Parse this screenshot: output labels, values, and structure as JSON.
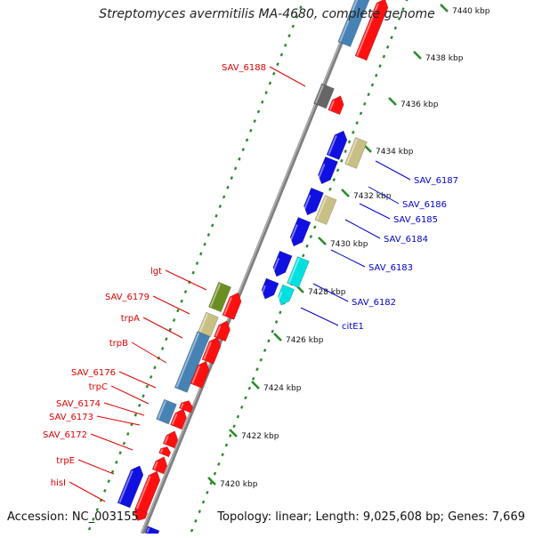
{
  "title": "Streptomyces avermitilis MA-4680, complete genome",
  "accession": "Accession: NC_003155",
  "summary": "Topology: linear; Length: 9,025,608 bp; Genes: 7,669",
  "colors": {
    "backbone": "#808080",
    "gene_blue": "#1010e0",
    "gene_red": "#ff1010",
    "gene_steelblue": "#4682b4",
    "gene_khaki": "#c8bf84",
    "gene_olive": "#6b8e23",
    "gene_cyan": "#00e0e0",
    "gene_gray": "#666666",
    "label_red": "#e00000",
    "label_blue": "#0000cc",
    "ruler_green": "#2a8a2a"
  },
  "ruler": {
    "unit": "kbp",
    "ticks": [
      {
        "kbp": 7420,
        "label": "7420 kbp"
      },
      {
        "kbp": 7422,
        "label": "7422 kbp"
      },
      {
        "kbp": 7424,
        "label": "7424 kbp"
      },
      {
        "kbp": 7426,
        "label": "7426 kbp"
      },
      {
        "kbp": 7428,
        "label": "7428 kbp"
      },
      {
        "kbp": 7430,
        "label": "7430 kbp"
      },
      {
        "kbp": 7432,
        "label": "7432 kbp"
      },
      {
        "kbp": 7434,
        "label": "7434 kbp"
      },
      {
        "kbp": 7436,
        "label": "7436 kbp"
      },
      {
        "kbp": 7438,
        "label": "7438 kbp"
      },
      {
        "kbp": 7440,
        "label": "7440 kbp"
      }
    ]
  },
  "labels_left": [
    "SAV_6188",
    "lgt",
    "SAV_6179",
    "trpA",
    "trpB",
    "SAV_6176",
    "trpC",
    "SAV_6174",
    "SAV_6173",
    "SAV_6172",
    "trpE",
    "hisI"
  ],
  "labels_right": [
    "SAV_6187",
    "SAV_6186",
    "SAV_6185",
    "SAV_6184",
    "SAV_6183",
    "SAV_6182",
    "citE1"
  ]
}
